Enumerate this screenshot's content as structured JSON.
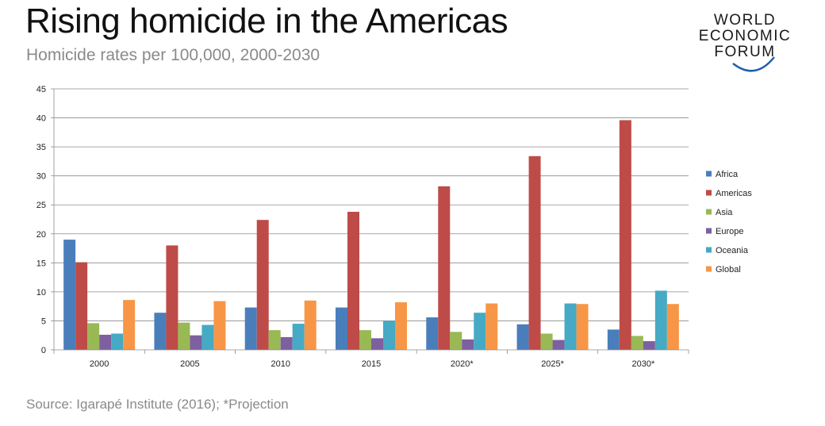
{
  "header": {
    "title": "Rising homicide in the Americas",
    "subtitle": "Homicide rates per 100,000, 2000-2030"
  },
  "logo": {
    "line1": "WORLD",
    "line2": "ECONOMIC",
    "line3": "FORUM"
  },
  "footer": {
    "source": "Source: Igarapé Institute (2016); *Projection"
  },
  "chart_data": {
    "type": "bar",
    "categories": [
      "2000",
      "2005",
      "2010",
      "2015",
      "2020*",
      "2025*",
      "2030*"
    ],
    "series": [
      {
        "name": "Africa",
        "color": "#4a7ebb",
        "values": [
          19.0,
          6.4,
          7.3,
          7.3,
          5.6,
          4.4,
          3.5
        ]
      },
      {
        "name": "Americas",
        "color": "#be4b48",
        "values": [
          15.1,
          18.0,
          22.4,
          23.8,
          28.2,
          33.4,
          39.6
        ]
      },
      {
        "name": "Asia",
        "color": "#98b954",
        "values": [
          4.6,
          4.7,
          3.4,
          3.4,
          3.1,
          2.8,
          2.4
        ]
      },
      {
        "name": "Europe",
        "color": "#7d60a0",
        "values": [
          2.6,
          2.5,
          2.2,
          2.0,
          1.8,
          1.7,
          1.5
        ]
      },
      {
        "name": "Oceania",
        "color": "#46aac5",
        "values": [
          2.8,
          4.3,
          4.5,
          5.0,
          6.4,
          8.0,
          10.2
        ]
      },
      {
        "name": "Global",
        "color": "#f79646",
        "values": [
          8.6,
          8.4,
          8.5,
          8.2,
          8.0,
          7.9,
          7.9
        ]
      }
    ],
    "yticks": [
      "0",
      "5",
      "10",
      "15",
      "20",
      "25",
      "30",
      "35",
      "40",
      "45"
    ],
    "ylim": [
      0,
      45
    ],
    "grid": true,
    "legend_position": "right"
  }
}
